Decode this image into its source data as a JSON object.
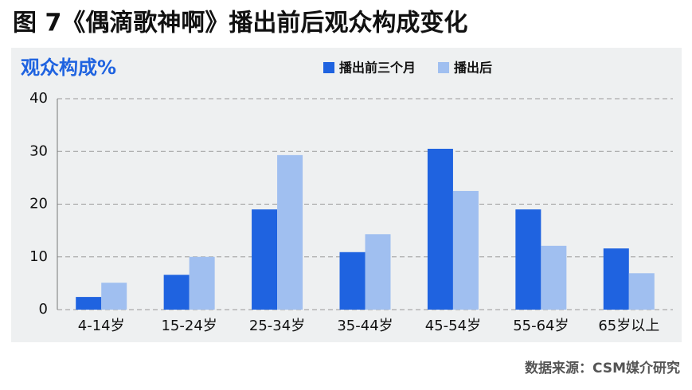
{
  "chart_data": {
    "type": "bar",
    "title": "图 7《偶滴歌神啊》播出前后观众构成变化",
    "y_label": "观众构成%",
    "source": "数据来源：CSM媒介研究",
    "categories": [
      "4-14岁",
      "15-24岁",
      "25-34岁",
      "35-44岁",
      "45-54岁",
      "55-64岁",
      "65岁以上"
    ],
    "series": [
      {
        "name": "播出前三个月",
        "color": "#1f63e0",
        "values": [
          2.4,
          6.6,
          19.0,
          10.9,
          30.5,
          19.0,
          11.6
        ]
      },
      {
        "name": "播出后",
        "color": "#a0bff0",
        "values": [
          5.1,
          10.0,
          29.3,
          14.3,
          22.5,
          12.1,
          6.9
        ]
      }
    ],
    "ylim": [
      0,
      40
    ],
    "yticks": [
      0,
      10,
      20,
      30,
      40
    ],
    "grid": true
  }
}
